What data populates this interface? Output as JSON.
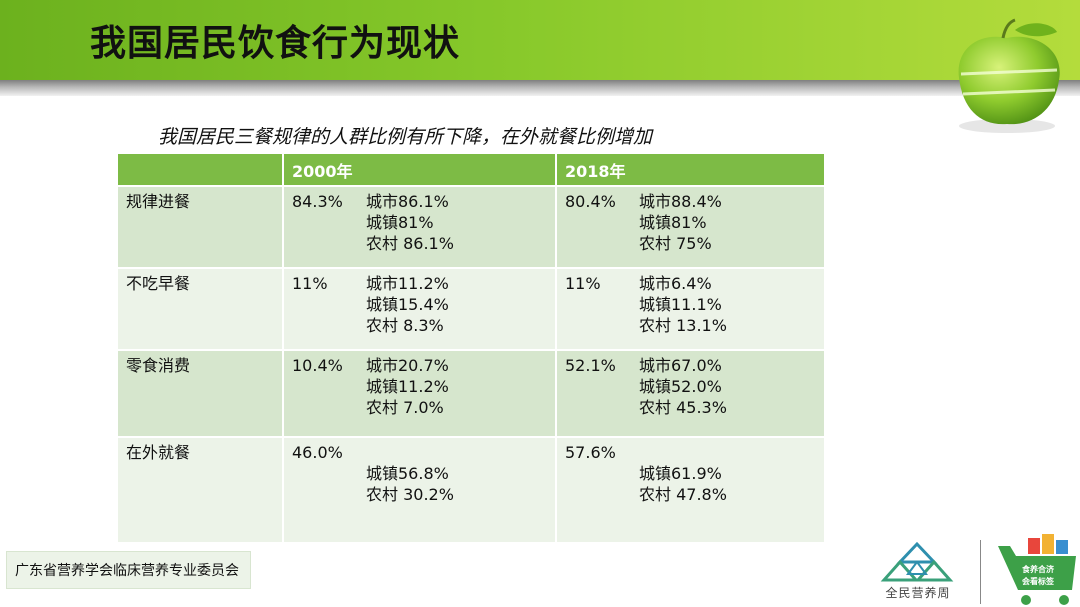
{
  "header": {
    "title": "我国居民饮食行为现状"
  },
  "subtitle": "我国居民三餐规律的人群比例有所下降，在外就餐比例增加",
  "table": {
    "headers": [
      "",
      "2000年",
      "2018年"
    ],
    "rows": [
      {
        "label": "规律进餐",
        "y2000": {
          "total": "84.3%",
          "breakdown": [
            "城市86.1%",
            "城镇81%",
            "农村 86.1%"
          ]
        },
        "y2018": {
          "total": "80.4%",
          "breakdown": [
            "城市88.4%",
            "城镇81%",
            "农村 75%"
          ]
        }
      },
      {
        "label": "不吃早餐",
        "y2000": {
          "total": "11%",
          "breakdown": [
            "城市11.2%",
            "城镇15.4%",
            "农村 8.3%"
          ]
        },
        "y2018": {
          "total": "11%",
          "breakdown": [
            "城市6.4%",
            "城镇11.1%",
            "农村 13.1%"
          ]
        }
      },
      {
        "label": "零食消费",
        "y2000": {
          "total": "10.4%",
          "breakdown": [
            "城市20.7%",
            "城镇11.2%",
            "农村 7.0%"
          ]
        },
        "y2018": {
          "total": "52.1%",
          "breakdown": [
            "城市67.0%",
            "城镇52.0%",
            "农村 45.3%"
          ]
        }
      },
      {
        "label": "在外就餐",
        "y2000": {
          "total": "46.0%",
          "breakdown": [
            "城镇56.8%",
            "农村 30.2%"
          ]
        },
        "y2018": {
          "total": "57.6%",
          "breakdown": [
            "城镇61.9%",
            "农村 47.8%"
          ]
        }
      }
    ]
  },
  "footer": {
    "organization": "广东省营养学会临床营养专业委员会",
    "week_logo_text": "全民营养周",
    "cart_logo_text": [
      "食养合济",
      "会看标签"
    ]
  },
  "colors": {
    "header_green": "#7cbe24",
    "table_header": "#7dbb45",
    "row_dark": "#d6e6cd",
    "row_light": "#ecf3e8"
  },
  "icons": [
    "green-apple-icon",
    "mountain-logo-icon",
    "shopping-cart-logo-icon"
  ]
}
